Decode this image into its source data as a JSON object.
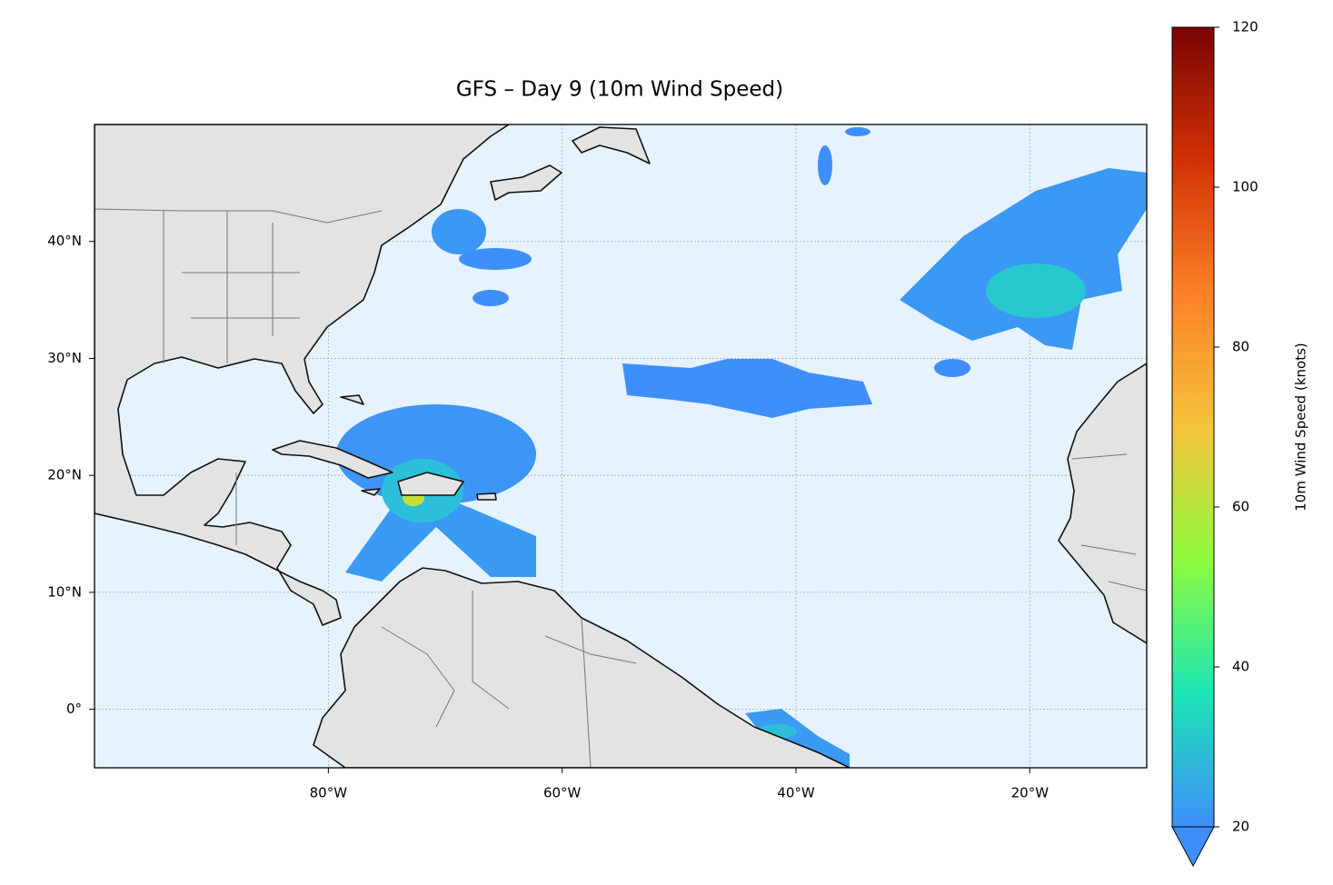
{
  "chart_data": {
    "type": "map",
    "title": "GFS – Day 9 (10m Wind Speed)",
    "xlim": [
      -100,
      -10
    ],
    "ylim": [
      -5,
      50
    ],
    "xticks": [
      {
        "value": -80,
        "label": "80°W"
      },
      {
        "value": -60,
        "label": "60°W"
      },
      {
        "value": -40,
        "label": "40°W"
      },
      {
        "value": -20,
        "label": "20°W"
      }
    ],
    "yticks": [
      {
        "value": 0,
        "label": "0°"
      },
      {
        "value": 10,
        "label": "10°N"
      },
      {
        "value": 20,
        "label": "20°N"
      },
      {
        "value": 30,
        "label": "30°N"
      },
      {
        "value": 40,
        "label": "40°N"
      }
    ],
    "grid": true,
    "colorbar": {
      "label": "10m Wind Speed (knots)",
      "lim": [
        20,
        120
      ],
      "ticks": [
        20,
        40,
        60,
        80,
        100,
        120
      ],
      "colors": [
        "#3f8ffb",
        "#1be5b5",
        "#8efc3d",
        "#f5c43a",
        "#fc8126",
        "#d23105",
        "#7a0403"
      ]
    }
  }
}
